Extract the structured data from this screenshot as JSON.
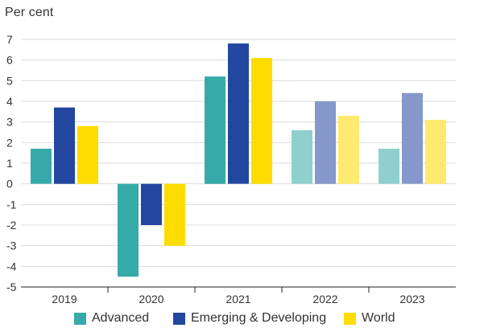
{
  "chart_data": {
    "type": "bar",
    "title": "",
    "ylabel": "Per cent",
    "xlabel": "",
    "ylim": [
      -5,
      7
    ],
    "yticks": [
      7,
      6,
      5,
      4,
      3,
      2,
      1,
      0,
      -1,
      -2,
      -3,
      -4,
      -5
    ],
    "categories": [
      "2019",
      "2020",
      "2021",
      "2022",
      "2023"
    ],
    "forecast_from_index": 3,
    "series": [
      {
        "name": "Advanced",
        "color": "#35aaa9",
        "forecast_color": "#8fd0cf",
        "values": [
          1.7,
          -4.5,
          5.2,
          2.6,
          1.7
        ]
      },
      {
        "name": "Emerging & Developing",
        "color": "#23479f",
        "forecast_color": "#8597cb",
        "values": [
          3.7,
          -2.0,
          6.8,
          4.0,
          4.4
        ]
      },
      {
        "name": "World",
        "color": "#fedc00",
        "forecast_color": "#feea6e",
        "values": [
          2.8,
          -3.0,
          6.1,
          3.3,
          3.1
        ]
      }
    ],
    "grid": true,
    "legend_position": "bottom"
  }
}
